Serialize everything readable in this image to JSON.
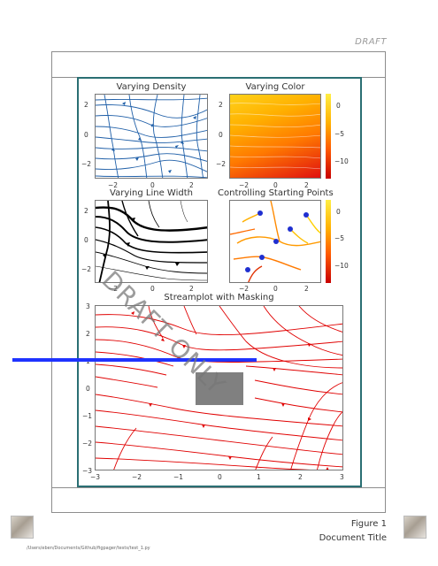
{
  "header": {
    "draft_label": "DRAFT"
  },
  "watermark": "DRAFT ONLY",
  "figure": {
    "label": "Figure 1",
    "title": "Document Title",
    "source_path": "/Users/eben/Documents/Github/figpager/tests/test_1.py"
  },
  "colors": {
    "frame": "#2a6f73",
    "blue_stream": "#1f5fa8",
    "red_stream": "#e00000",
    "black_stream": "#000000",
    "start_point": "#1f2fd0",
    "blue_bar": "#1f33ff",
    "mask": "#808080"
  },
  "plots": {
    "density": {
      "title": "Varying Density",
      "xticks": [
        "−2",
        "0",
        "2"
      ],
      "yticks": [
        "2",
        "0",
        "−2"
      ]
    },
    "color": {
      "title": "Varying Color",
      "xticks": [
        "−2",
        "0",
        "2"
      ],
      "yticks": [
        "2",
        "0",
        "−2"
      ],
      "colorbar_ticks": [
        "0",
        "−5",
        "−10"
      ]
    },
    "linewidth": {
      "title": "Varying Line Width",
      "xticks": [
        "−2",
        "0",
        "2"
      ],
      "yticks": [
        "2",
        "0",
        "−2"
      ]
    },
    "start": {
      "title": "Controlling Starting Points",
      "xticks": [
        "−2",
        "0",
        "2"
      ],
      "colorbar_ticks": [
        "0",
        "−5",
        "−10"
      ]
    },
    "masking": {
      "title": "Streamplot with Masking",
      "xticks": [
        "−3",
        "−2",
        "−1",
        "0",
        "1",
        "2",
        "3"
      ],
      "yticks": [
        "3",
        "2",
        "1",
        "0",
        "−1",
        "−2",
        "−3"
      ]
    }
  }
}
